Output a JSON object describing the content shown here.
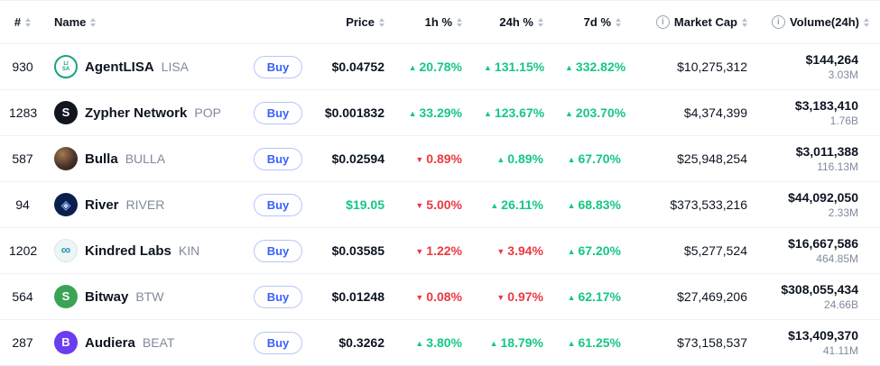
{
  "colors": {
    "up": "#16c784",
    "down": "#ea3943",
    "accent": "#3861fb",
    "text": "#0d1421",
    "muted": "#808a9d",
    "border": "#eff2f5"
  },
  "icons": {
    "info_glyph": "i"
  },
  "table": {
    "buy_label": "Buy",
    "headers": {
      "rank": "#",
      "name": "Name",
      "price": "Price",
      "h1": "1h %",
      "h24": "24h %",
      "d7": "7d %",
      "market_cap": "Market Cap",
      "volume": "Volume(24h)"
    },
    "rows": [
      {
        "rank": "930",
        "name": "AgentLISA",
        "symbol": "LISA",
        "price": "$0.04752",
        "price_class": "",
        "h1": {
          "dir": "up",
          "value": "20.78%"
        },
        "h24": {
          "dir": "up",
          "value": "131.15%"
        },
        "d7": {
          "dir": "up",
          "value": "332.82%"
        },
        "market_cap": "$10,275,312",
        "volume_usd": "$144,264",
        "volume_coin": "3.03M",
        "icon": {
          "glyph": "LI\nSA",
          "bg": "#ffffff",
          "color": "#149e83",
          "border": "2px solid #1aa37f",
          "fs": "6px"
        }
      },
      {
        "rank": "1283",
        "name": "Zypher Network",
        "symbol": "POP",
        "price": "$0.001832",
        "price_class": "",
        "h1": {
          "dir": "up",
          "value": "33.29%"
        },
        "h24": {
          "dir": "up",
          "value": "123.67%"
        },
        "d7": {
          "dir": "up",
          "value": "203.70%"
        },
        "market_cap": "$4,374,399",
        "volume_usd": "$3,183,410",
        "volume_coin": "1.76B",
        "icon": {
          "glyph": "S",
          "bg": "#11151f",
          "color": "#ffffff",
          "border": "none",
          "fs": "13px"
        }
      },
      {
        "rank": "587",
        "name": "Bulla",
        "symbol": "BULLA",
        "price": "$0.02594",
        "price_class": "",
        "h1": {
          "dir": "down",
          "value": "0.89%"
        },
        "h24": {
          "dir": "up",
          "value": "0.89%"
        },
        "d7": {
          "dir": "up",
          "value": "67.70%"
        },
        "market_cap": "$25,948,254",
        "volume_usd": "$3,011,388",
        "volume_coin": "116.13M",
        "icon": {
          "glyph": "",
          "bg": "radial-gradient(circle at 35% 30%, #a37952 0%, #4a342a 55%, #1e1714 100%)",
          "color": "#ffffff",
          "border": "none",
          "fs": "13px"
        }
      },
      {
        "rank": "94",
        "name": "River",
        "symbol": "RIVER",
        "price": "$19.05",
        "price_class": "up",
        "h1": {
          "dir": "down",
          "value": "5.00%"
        },
        "h24": {
          "dir": "up",
          "value": "26.11%"
        },
        "d7": {
          "dir": "up",
          "value": "68.83%"
        },
        "market_cap": "$373,533,216",
        "volume_usd": "$44,092,050",
        "volume_coin": "2.33M",
        "icon": {
          "glyph": "◈",
          "bg": "#0b1f4e",
          "color": "#aecbff",
          "border": "none",
          "fs": "14px"
        }
      },
      {
        "rank": "1202",
        "name": "Kindred Labs",
        "symbol": "KIN",
        "price": "$0.03585",
        "price_class": "",
        "h1": {
          "dir": "down",
          "value": "1.22%"
        },
        "h24": {
          "dir": "down",
          "value": "3.94%"
        },
        "d7": {
          "dir": "up",
          "value": "67.20%"
        },
        "market_cap": "$5,277,524",
        "volume_usd": "$16,667,586",
        "volume_coin": "464.85M",
        "icon": {
          "glyph": "∞",
          "bg": "#edf5f6",
          "color": "#2797b4",
          "border": "1px solid #dbe7ea",
          "fs": "15px"
        }
      },
      {
        "rank": "564",
        "name": "Bitway",
        "symbol": "BTW",
        "price": "$0.01248",
        "price_class": "",
        "h1": {
          "dir": "down",
          "value": "0.08%"
        },
        "h24": {
          "dir": "down",
          "value": "0.97%"
        },
        "d7": {
          "dir": "up",
          "value": "62.17%"
        },
        "market_cap": "$27,469,206",
        "volume_usd": "$308,055,434",
        "volume_coin": "24.66B",
        "icon": {
          "glyph": "S",
          "bg": "#3ba355",
          "color": "#ffffff",
          "border": "none",
          "fs": "13px"
        }
      },
      {
        "rank": "287",
        "name": "Audiera",
        "symbol": "BEAT",
        "price": "$0.3262",
        "price_class": "",
        "h1": {
          "dir": "up",
          "value": "3.80%"
        },
        "h24": {
          "dir": "up",
          "value": "18.79%"
        },
        "d7": {
          "dir": "up",
          "value": "61.25%"
        },
        "market_cap": "$73,158,537",
        "volume_usd": "$13,409,370",
        "volume_coin": "41.11M",
        "icon": {
          "glyph": "B",
          "bg": "#6a3df0",
          "color": "#ffffff",
          "border": "none",
          "fs": "13px"
        }
      }
    ]
  }
}
